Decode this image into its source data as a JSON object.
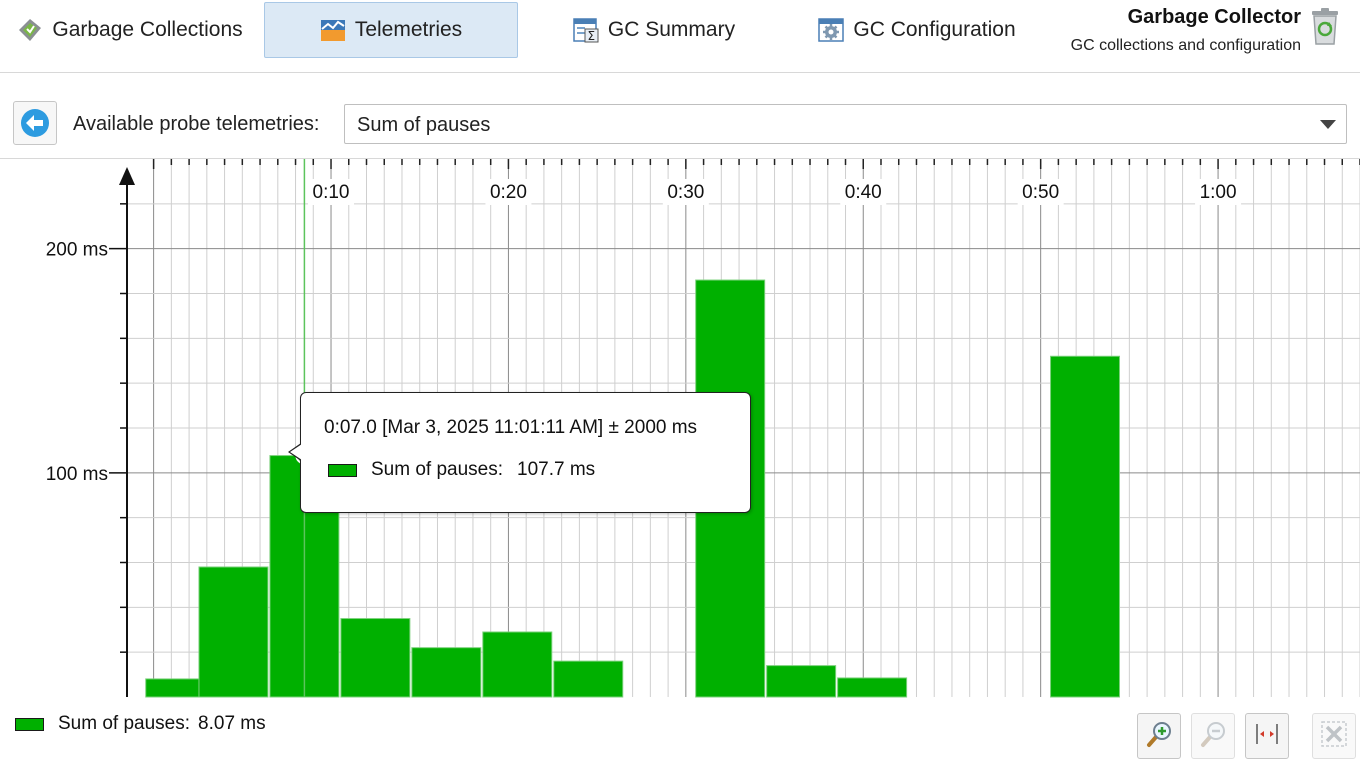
{
  "toolbar": {
    "tabs": [
      {
        "label": "Garbage Collections",
        "icon": "garbage-collections-icon",
        "active": false
      },
      {
        "label": "Telemetries",
        "icon": "telemetries-icon",
        "active": true
      },
      {
        "label": "GC Summary",
        "icon": "gc-summary-icon",
        "active": false
      },
      {
        "label": "GC Configuration",
        "icon": "gc-configuration-icon",
        "active": false
      }
    ],
    "title": "Garbage Collector",
    "subtitle": "GC collections and configuration",
    "icon": "recycle-bin-icon"
  },
  "probe": {
    "label": "Available probe telemetries:",
    "selected": "Sum of pauses"
  },
  "chart_data": {
    "type": "bar",
    "series": [
      {
        "name": "Sum of pauses",
        "color": "#00b000",
        "points": [
          {
            "x": 0,
            "y": 8.07
          },
          {
            "x": 3,
            "y": 58
          },
          {
            "x": 7,
            "y": 107.7
          },
          {
            "x": 11,
            "y": 35
          },
          {
            "x": 15,
            "y": 22
          },
          {
            "x": 19,
            "y": 29
          },
          {
            "x": 23,
            "y": 16
          },
          {
            "x": 31,
            "y": 186
          },
          {
            "x": 35,
            "y": 14
          },
          {
            "x": 39,
            "y": 8.5
          },
          {
            "x": 51,
            "y": 152
          }
        ]
      }
    ],
    "bucket_seconds": 4,
    "xlim": [
      -1.5,
      68
    ],
    "ylim": [
      0,
      240
    ],
    "x_ticks": [
      "0:10",
      "0:20",
      "0:30",
      "0:40",
      "0:50",
      "1:00"
    ],
    "y_ticks": [
      "100 ms",
      "200 ms"
    ],
    "cursor_x": 7,
    "grid": true
  },
  "tooltip": {
    "time": "0:07.0 [Mar 3, 2025 11:01:11 AM] ± 2000 ms",
    "series_label": "Sum of pauses:",
    "value": "107.7 ms"
  },
  "legend": {
    "label": "Sum of pauses:",
    "value": "8.07 ms"
  },
  "zoom_buttons": [
    {
      "icon": "zoom-in-icon",
      "enabled": true
    },
    {
      "icon": "zoom-out-icon",
      "enabled": false
    },
    {
      "icon": "fit-width-icon",
      "enabled": true
    },
    {
      "icon": "reset-zoom-icon",
      "enabled": false
    }
  ]
}
